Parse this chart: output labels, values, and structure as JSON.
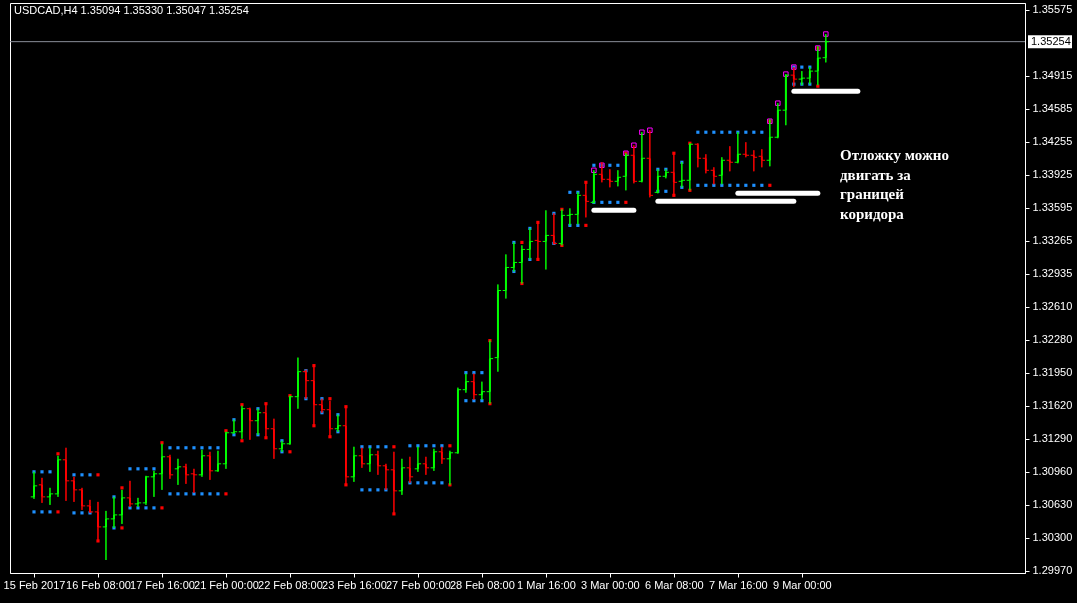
{
  "chart_data": {
    "type": "candlestick",
    "title": "USDCAD,H4 1.35094 1.35330 1.35047 1.35254",
    "categories": [
      "15 Feb 2017",
      null,
      null,
      null,
      null,
      null,
      null,
      null,
      "16 Feb 08:00",
      null,
      null,
      null,
      null,
      null,
      null,
      null,
      "17 Feb 16:00",
      null,
      null,
      null,
      null,
      null,
      null,
      null,
      "21 Feb 00:00",
      null,
      null,
      null,
      null,
      null,
      null,
      null,
      "22 Feb 08:00",
      null,
      null,
      null,
      null,
      null,
      null,
      null,
      "23 Feb 16:00",
      null,
      null,
      null,
      null,
      null,
      null,
      null,
      "27 Feb 00:00",
      null,
      null,
      null,
      null,
      null,
      null,
      null,
      "28 Feb 08:00",
      null,
      null,
      null,
      null,
      null,
      null,
      null,
      "1 Mar 16:00",
      null,
      null,
      null,
      null,
      null,
      null,
      null,
      "3 Mar 00:00",
      null,
      null,
      null,
      null,
      null,
      null,
      null,
      "6 Mar 08:00",
      null,
      null,
      null,
      null,
      null,
      null,
      null,
      "7 Mar 16:00",
      null,
      null,
      null,
      null,
      null,
      null,
      null,
      "9 Mar 00:00",
      null,
      null,
      null,
      null,
      null,
      null,
      null,
      null,
      null,
      null,
      null,
      null,
      null,
      null,
      null,
      null,
      null,
      null,
      null,
      null,
      null,
      null,
      null,
      null,
      null,
      null,
      null
    ],
    "ohlc": [
      [
        1.3071,
        1.3096,
        1.3069,
        1.3082
      ],
      [
        1.3083,
        1.309,
        1.3065,
        1.3071
      ],
      [
        1.3071,
        1.308,
        1.3063,
        1.3074
      ],
      [
        1.3074,
        1.3112,
        1.3071,
        1.3108
      ],
      [
        1.3108,
        1.312,
        1.3067,
        1.3087
      ],
      [
        1.3087,
        1.3091,
        1.3066,
        1.3078
      ],
      [
        1.3078,
        1.308,
        1.3058,
        1.3062
      ],
      [
        1.3062,
        1.3068,
        1.3055,
        1.3056
      ],
      [
        1.3056,
        1.3066,
        1.3026,
        1.3041
      ],
      [
        1.3041,
        1.3057,
        1.3008,
        1.3049
      ],
      [
        1.3049,
        1.3071,
        1.304,
        1.3053
      ],
      [
        1.3053,
        1.3078,
        1.3044,
        1.307
      ],
      [
        1.307,
        1.3087,
        1.3061,
        1.3064
      ],
      [
        1.3064,
        1.307,
        1.3061,
        1.3065
      ],
      [
        1.3065,
        1.3092,
        1.3063,
        1.3091
      ],
      [
        1.3091,
        1.3097,
        1.3071,
        1.3094
      ],
      [
        1.3094,
        1.3124,
        1.3078,
        1.3111
      ],
      [
        1.3111,
        1.3113,
        1.3089,
        1.3093
      ],
      [
        1.3099,
        1.3109,
        1.3083,
        1.3101
      ],
      [
        1.3101,
        1.3104,
        1.3084,
        1.3093
      ],
      [
        1.3094,
        1.3099,
        1.3075,
        1.3093
      ],
      [
        1.3093,
        1.3118,
        1.3091,
        1.3112
      ],
      [
        1.3112,
        1.3116,
        1.3088,
        1.3097
      ],
      [
        1.3097,
        1.3117,
        1.3096,
        1.3104
      ],
      [
        1.3104,
        1.3136,
        1.3099,
        1.3135
      ],
      [
        1.3135,
        1.3148,
        1.3134,
        1.3136
      ],
      [
        1.3136,
        1.3162,
        1.3129,
        1.3159
      ],
      [
        1.3159,
        1.316,
        1.3128,
        1.3147
      ],
      [
        1.3147,
        1.3159,
        1.3133,
        1.3155
      ],
      [
        1.3155,
        1.3164,
        1.3129,
        1.3139
      ],
      [
        1.3139,
        1.3149,
        1.3109,
        1.3119
      ],
      [
        1.3119,
        1.3127,
        1.3116,
        1.3124
      ],
      [
        1.3124,
        1.3172,
        1.3123,
        1.3171
      ],
      [
        1.3171,
        1.321,
        1.3159,
        1.3196
      ],
      [
        1.3196,
        1.3198,
        1.3169,
        1.3187
      ],
      [
        1.3187,
        1.3203,
        1.3142,
        1.3163
      ],
      [
        1.3163,
        1.3169,
        1.3155,
        1.3158
      ],
      [
        1.3158,
        1.3167,
        1.3131,
        1.3139
      ],
      [
        1.3139,
        1.3153,
        1.3136,
        1.3142
      ],
      [
        1.3142,
        1.3161,
        1.3083,
        1.3091
      ],
      [
        1.3091,
        1.3121,
        1.3086,
        1.3112
      ],
      [
        1.3112,
        1.312,
        1.31,
        1.3104
      ],
      [
        1.3104,
        1.312,
        1.3096,
        1.3113
      ],
      [
        1.3113,
        1.3117,
        1.3093,
        1.3102
      ],
      [
        1.3102,
        1.3104,
        1.3078,
        1.3098
      ],
      [
        1.3098,
        1.3116,
        1.3053,
        1.3077
      ],
      [
        1.3077,
        1.3109,
        1.3073,
        1.31
      ],
      [
        1.31,
        1.3111,
        1.3085,
        1.3091
      ],
      [
        1.3099,
        1.3121,
        1.3096,
        1.3104
      ],
      [
        1.3104,
        1.3111,
        1.3093,
        1.31
      ],
      [
        1.31,
        1.3119,
        1.3097,
        1.3116
      ],
      [
        1.3116,
        1.3121,
        1.3104,
        1.3109
      ],
      [
        1.3109,
        1.3117,
        1.3083,
        1.3115
      ],
      [
        1.3115,
        1.318,
        1.3114,
        1.3178
      ],
      [
        1.3178,
        1.3194,
        1.3175,
        1.3186
      ],
      [
        1.3186,
        1.3194,
        1.3168,
        1.3173
      ],
      [
        1.3173,
        1.3186,
        1.3168,
        1.3176
      ],
      [
        1.3176,
        1.3227,
        1.3164,
        1.3209
      ],
      [
        1.321,
        1.3283,
        1.3196,
        1.3277
      ],
      [
        1.3277,
        1.3313,
        1.3269,
        1.33
      ],
      [
        1.33,
        1.3325,
        1.3296,
        1.3305
      ],
      [
        1.3305,
        1.3322,
        1.3284,
        1.3318
      ],
      [
        1.3318,
        1.3339,
        1.3308,
        1.3326
      ],
      [
        1.3327,
        1.3345,
        1.3307,
        1.3326
      ],
      [
        1.3326,
        1.3357,
        1.3298,
        1.3332
      ],
      [
        1.3332,
        1.3354,
        1.3323,
        1.3324
      ],
      [
        1.3324,
        1.3358,
        1.3322,
        1.3352
      ],
      [
        1.3352,
        1.3359,
        1.3342,
        1.3353
      ],
      [
        1.3353,
        1.3375,
        1.3343,
        1.3372
      ],
      [
        1.3372,
        1.3386,
        1.335,
        1.3366
      ],
      [
        1.3365,
        1.3397,
        1.3364,
        1.3393
      ],
      [
        1.3393,
        1.3405,
        1.3385,
        1.3388
      ],
      [
        1.3388,
        1.3398,
        1.338,
        1.3386
      ],
      [
        1.3386,
        1.3397,
        1.3381,
        1.339
      ],
      [
        1.3391,
        1.3414,
        1.3377,
        1.3412
      ],
      [
        1.3412,
        1.3422,
        1.3384,
        1.3386
      ],
      [
        1.3386,
        1.3435,
        1.3385,
        1.3409
      ],
      [
        1.3409,
        1.3437,
        1.337,
        1.3372
      ],
      [
        1.3375,
        1.3398,
        1.3374,
        1.3391
      ],
      [
        1.3391,
        1.3398,
        1.3389,
        1.3395
      ],
      [
        1.3395,
        1.3414,
        1.3371,
        1.3385
      ],
      [
        1.3386,
        1.3405,
        1.338,
        1.3387
      ],
      [
        1.3387,
        1.3424,
        1.3377,
        1.3423
      ],
      [
        1.3423,
        1.3424,
        1.34,
        1.3409
      ],
      [
        1.3409,
        1.3413,
        1.3394,
        1.3397
      ],
      [
        1.3397,
        1.34,
        1.3383,
        1.3391
      ],
      [
        1.3392,
        1.341,
        1.3383,
        1.3407
      ],
      [
        1.3407,
        1.3421,
        1.3396,
        1.3405
      ],
      [
        1.3405,
        1.3435,
        1.3404,
        1.3413
      ],
      [
        1.3413,
        1.3425,
        1.341,
        1.3412
      ],
      [
        1.3412,
        1.3417,
        1.3396,
        1.341
      ],
      [
        1.3411,
        1.3418,
        1.34,
        1.3407
      ],
      [
        1.3407,
        1.3448,
        1.3401,
        1.343
      ],
      [
        1.343,
        1.3464,
        1.3429,
        1.3457
      ],
      [
        1.3457,
        1.3493,
        1.3442,
        1.3492
      ],
      [
        1.3492,
        1.35,
        1.348,
        1.3488
      ],
      [
        1.3488,
        1.3496,
        1.3482,
        1.3489
      ],
      [
        1.3489,
        1.35,
        1.3483,
        1.3496
      ],
      [
        1.3496,
        1.3521,
        1.3482,
        1.3509
      ],
      [
        1.35094,
        1.3533,
        1.35047,
        1.35254
      ],
      null,
      null,
      null,
      null,
      null,
      null,
      null,
      null,
      null,
      null,
      null,
      null,
      null,
      null,
      null,
      null,
      null,
      null,
      null,
      null,
      null,
      null,
      null,
      null
    ],
    "colors": [
      "#00ff00",
      "#ff0000",
      "#00ff00",
      "#00ff00",
      "#ff0000",
      "#ff0000",
      "#ff0000",
      "#ff0000",
      "#ff0000",
      "#00ff00",
      "#00ff00",
      "#00ff00",
      "#ff0000",
      "#00ff00",
      "#00ff00",
      "#00ff00",
      "#00ff00",
      "#ff0000",
      "#00ff00",
      "#ff0000",
      "#ff0000",
      "#00ff00",
      "#ff0000",
      "#00ff00",
      "#00ff00",
      "#00ff00",
      "#00ff00",
      "#ff0000",
      "#00ff00",
      "#ff0000",
      "#ff0000",
      "#00ff00",
      "#00ff00",
      "#00ff00",
      "#ff0000",
      "#ff0000",
      "#ff0000",
      "#ff0000",
      "#00ff00",
      "#ff0000",
      "#00ff00",
      "#ff0000",
      "#00ff00",
      "#ff0000",
      "#ff0000",
      "#ff0000",
      "#00ff00",
      "#ff0000",
      "#00ff00",
      "#ff0000",
      "#00ff00",
      "#ff0000",
      "#00ff00",
      "#00ff00",
      "#00ff00",
      "#ff0000",
      "#00ff00",
      "#00ff00",
      "#00ff00",
      "#00ff00",
      "#00ff00",
      "#00ff00",
      "#00ff00",
      "#ff0000",
      "#00ff00",
      "#ff0000",
      "#00ff00",
      "#00ff00",
      "#00ff00",
      "#ff0000",
      "#00ff00",
      "#ff0000",
      "#ff0000",
      "#00ff00",
      "#00ff00",
      "#ff0000",
      "#00ff00",
      "#ff0000",
      "#00ff00",
      "#00ff00",
      "#ff0000",
      "#00ff00",
      "#00ff00",
      "#ff0000",
      "#ff0000",
      "#ff0000",
      "#00ff00",
      "#ff0000",
      "#00ff00",
      "#ff0000",
      "#ff0000",
      "#ff0000",
      "#00ff00",
      "#00ff00",
      "#00ff00",
      "#ff0000",
      "#00ff00",
      "#00ff00",
      "#00ff00",
      "#00ff00",
      null,
      null,
      null,
      null,
      null,
      null,
      null,
      null,
      null,
      null,
      null,
      null,
      null,
      null,
      null,
      null,
      null,
      null,
      null,
      null,
      null,
      null,
      null,
      null
    ],
    "series": [
      {
        "type": "line",
        "color": "#ffffff",
        "values": [
          null,
          null,
          null,
          null,
          null,
          null,
          null,
          null,
          null,
          null,
          null,
          null,
          null,
          null,
          null,
          null,
          null,
          null,
          null,
          null,
          null,
          null,
          null,
          null,
          null,
          null,
          null,
          null,
          null,
          null,
          null,
          null,
          null,
          null,
          null,
          null,
          null,
          null,
          null,
          null,
          null,
          null,
          null,
          null,
          null,
          null,
          null,
          null,
          null,
          null,
          null,
          null,
          null,
          null,
          null,
          null,
          null,
          null,
          null,
          null,
          null,
          null,
          null,
          null,
          null,
          null,
          null,
          null,
          null,
          null,
          1.3357,
          1.3357,
          1.3357,
          1.3357,
          1.3357,
          1.3357,
          null,
          null,
          null,
          null,
          null,
          null,
          null,
          null,
          null,
          null,
          null,
          null,
          null,
          null,
          null,
          null,
          null,
          null,
          null,
          null,
          null,
          null,
          null,
          null,
          null,
          null,
          null,
          null,
          null,
          null,
          null,
          null,
          null,
          null,
          null,
          null,
          null,
          null,
          null,
          null,
          null,
          null,
          null,
          null,
          null,
          null,
          null,
          null
        ]
      },
      {
        "type": "line",
        "color": "#ffffff",
        "values": [
          null,
          null,
          null,
          null,
          null,
          null,
          null,
          null,
          null,
          null,
          null,
          null,
          null,
          null,
          null,
          null,
          null,
          null,
          null,
          null,
          null,
          null,
          null,
          null,
          null,
          null,
          null,
          null,
          null,
          null,
          null,
          null,
          null,
          null,
          null,
          null,
          null,
          null,
          null,
          null,
          null,
          null,
          null,
          null,
          null,
          null,
          null,
          null,
          null,
          null,
          null,
          null,
          null,
          null,
          null,
          null,
          null,
          null,
          null,
          null,
          null,
          null,
          null,
          null,
          null,
          null,
          null,
          null,
          null,
          null,
          null,
          null,
          null,
          null,
          null,
          null,
          null,
          null,
          1.3366,
          1.3366,
          1.3366,
          1.3366,
          1.3366,
          1.3366,
          1.3366,
          1.3366,
          1.3366,
          1.3366,
          1.3366,
          1.3366,
          1.3366,
          1.3366,
          1.3366,
          1.3366,
          1.3366,
          1.3366,
          null,
          null,
          null,
          null,
          null,
          null,
          null,
          null,
          null,
          null,
          null,
          null,
          null,
          null,
          null,
          null,
          null,
          null,
          null,
          null,
          null,
          null,
          null,
          null,
          null,
          null,
          null,
          null
        ]
      },
      {
        "type": "line",
        "color": "#ffffff",
        "values": [
          null,
          null,
          null,
          null,
          null,
          null,
          null,
          null,
          null,
          null,
          null,
          null,
          null,
          null,
          null,
          null,
          null,
          null,
          null,
          null,
          null,
          null,
          null,
          null,
          null,
          null,
          null,
          null,
          null,
          null,
          null,
          null,
          null,
          null,
          null,
          null,
          null,
          null,
          null,
          null,
          null,
          null,
          null,
          null,
          null,
          null,
          null,
          null,
          null,
          null,
          null,
          null,
          null,
          null,
          null,
          null,
          null,
          null,
          null,
          null,
          null,
          null,
          null,
          null,
          null,
          null,
          null,
          null,
          null,
          null,
          null,
          null,
          null,
          null,
          null,
          null,
          null,
          null,
          null,
          null,
          null,
          null,
          null,
          null,
          null,
          null,
          null,
          null,
          1.3374,
          1.3374,
          1.3374,
          1.3374,
          1.3374,
          1.3374,
          1.3374,
          1.3374,
          1.3374,
          1.3374,
          1.3374,
          null,
          null,
          null,
          null,
          null,
          null,
          null,
          null,
          null,
          null,
          null,
          null,
          null,
          null,
          null,
          null,
          null,
          null,
          null,
          null,
          null,
          null,
          null,
          null,
          null
        ]
      },
      {
        "type": "line",
        "color": "#ffffff",
        "values": [
          null,
          null,
          null,
          null,
          null,
          null,
          null,
          null,
          null,
          null,
          null,
          null,
          null,
          null,
          null,
          null,
          null,
          null,
          null,
          null,
          null,
          null,
          null,
          null,
          null,
          null,
          null,
          null,
          null,
          null,
          null,
          null,
          null,
          null,
          null,
          null,
          null,
          null,
          null,
          null,
          null,
          null,
          null,
          null,
          null,
          null,
          null,
          null,
          null,
          null,
          null,
          null,
          null,
          null,
          null,
          null,
          null,
          null,
          null,
          null,
          null,
          null,
          null,
          null,
          null,
          null,
          null,
          null,
          null,
          null,
          null,
          null,
          null,
          null,
          null,
          null,
          null,
          null,
          null,
          null,
          null,
          null,
          null,
          null,
          null,
          null,
          null,
          null,
          null,
          null,
          null,
          null,
          null,
          null,
          null,
          1.3476,
          1.3476,
          1.3476,
          1.3476,
          1.3476,
          1.3476,
          1.3476,
          1.3476,
          1.3476,
          null,
          null,
          null,
          null,
          null,
          null,
          null,
          null,
          null,
          null,
          null,
          null,
          null,
          null,
          null,
          null,
          null,
          null,
          null,
          null
        ]
      },
      {
        "type": "scatter",
        "marker": "square",
        "values": [
          1.3096,
          1.3096,
          1.3096,
          1.3114,
          null,
          1.3093,
          1.3093,
          1.3093,
          1.3093,
          null,
          1.3071,
          1.308,
          1.3099,
          1.3099,
          1.3099,
          1.3099,
          1.3125,
          1.312,
          1.312,
          1.312,
          1.312,
          1.312,
          1.312,
          1.312,
          1.3137,
          1.3148,
          1.3163,
          null,
          1.3159,
          1.3164,
          null,
          1.3127,
          1.3172,
          null,
          1.3197,
          1.3202,
          1.3169,
          1.3169,
          1.3153,
          1.3161,
          null,
          1.3121,
          1.3121,
          1.3121,
          1.3121,
          1.3121,
          null,
          1.3122,
          1.3122,
          1.3122,
          1.3122,
          1.3122,
          1.3122,
          null,
          1.3195,
          1.3195,
          1.3195,
          1.3227,
          null,
          null,
          1.3325,
          1.3325,
          1.3339,
          1.3345,
          null,
          1.3354,
          1.3358,
          1.3375,
          1.3375,
          1.3385,
          1.3402,
          1.3402,
          1.3402,
          1.3402,
          1.3414,
          null,
          null,
          null,
          1.3398,
          1.3398,
          1.3414,
          1.3405,
          1.3424,
          1.3435,
          1.3435,
          1.3435,
          1.3435,
          1.3435,
          1.3435,
          1.3435,
          1.3435,
          1.3435,
          1.3446,
          null,
          null,
          1.35,
          1.35,
          1.35,
          1.3519,
          null,
          null,
          null,
          null,
          null,
          null,
          null,
          null,
          null,
          null,
          null,
          null,
          null,
          null,
          null,
          null,
          null,
          null,
          null,
          null,
          null,
          null,
          null,
          null,
          null
        ],
        "colors": [
          "#1e90ff",
          "#1e90ff",
          "#1e90ff",
          "#ff0000",
          null,
          "#1e90ff",
          "#1e90ff",
          "#1e90ff",
          "#ff0000",
          null,
          "#1e90ff",
          "#ff0000",
          "#1e90ff",
          "#1e90ff",
          "#1e90ff",
          "#1e90ff",
          "#ff0000",
          "#1e90ff",
          "#1e90ff",
          "#1e90ff",
          "#1e90ff",
          "#1e90ff",
          "#1e90ff",
          "#1e90ff",
          "#ff0000",
          "#1e90ff",
          "#ff0000",
          null,
          "#1e90ff",
          "#ff0000",
          null,
          "#1e90ff",
          "#ff0000",
          null,
          "#1e90ff",
          "#ff0000",
          "#1e90ff",
          "#ff0000",
          "#1e90ff",
          "#ff0000",
          null,
          "#1e90ff",
          "#1e90ff",
          "#1e90ff",
          "#1e90ff",
          "#ff0000",
          null,
          "#1e90ff",
          "#1e90ff",
          "#1e90ff",
          "#1e90ff",
          "#1e90ff",
          "#ff0000",
          null,
          "#1e90ff",
          "#1e90ff",
          "#1e90ff",
          "#ff0000",
          null,
          null,
          "#1e90ff",
          "#ff0000",
          "#1e90ff",
          "#ff0000",
          null,
          "#1e90ff",
          "#ff0000",
          "#1e90ff",
          "#1e90ff",
          "#ff0000",
          "#1e90ff",
          "#1e90ff",
          "#1e90ff",
          "#1e90ff",
          "#ff0000",
          null,
          null,
          null,
          "#1e90ff",
          "#1e90ff",
          "#ff0000",
          "#1e90ff",
          "#ff0000",
          "#1e90ff",
          "#1e90ff",
          "#1e90ff",
          "#1e90ff",
          "#1e90ff",
          "#1e90ff",
          "#1e90ff",
          "#1e90ff",
          "#1e90ff",
          "#ff0000",
          null,
          null,
          "#1e90ff",
          "#1e90ff",
          "#1e90ff",
          "#ff0000",
          null,
          null,
          null,
          null,
          null,
          null,
          null,
          null,
          null,
          null,
          null,
          null,
          null,
          null,
          null,
          null,
          null,
          null,
          null,
          null,
          null,
          null,
          null,
          null,
          null
        ]
      },
      {
        "type": "scatter",
        "marker": "square",
        "values": [
          1.3056,
          1.3056,
          1.3056,
          1.3056,
          null,
          1.3055,
          1.3055,
          1.3055,
          1.3027,
          null,
          1.304,
          1.304,
          1.306,
          1.306,
          1.306,
          1.306,
          1.306,
          1.3074,
          1.3074,
          1.3074,
          1.3074,
          1.3074,
          1.3074,
          1.3074,
          1.3074,
          1.3133,
          1.3127,
          null,
          1.3133,
          1.313,
          null,
          1.3116,
          1.3116,
          null,
          1.3169,
          1.3142,
          1.3155,
          1.3131,
          1.3136,
          1.3083,
          null,
          1.3078,
          1.3078,
          1.3078,
          1.3078,
          1.3054,
          null,
          1.3085,
          1.3085,
          1.3085,
          1.3085,
          1.3085,
          1.3083,
          null,
          1.3167,
          1.3167,
          1.3167,
          1.3164,
          null,
          null,
          1.3296,
          1.3284,
          1.3308,
          1.3308,
          null,
          1.3324,
          1.3322,
          1.3342,
          1.3342,
          1.3342,
          1.3365,
          1.3365,
          1.3365,
          1.3365,
          1.3365,
          null,
          null,
          null,
          1.3376,
          1.3376,
          1.3372,
          1.338,
          1.3377,
          1.3382,
          1.3382,
          1.3382,
          1.3382,
          1.3382,
          1.3382,
          1.3382,
          1.3382,
          1.3382,
          1.3382,
          null,
          null,
          1.3483,
          1.3483,
          1.3483,
          1.3481,
          null,
          null,
          null,
          null,
          null,
          null,
          null,
          null,
          null,
          null,
          null,
          null,
          null,
          null,
          null,
          null,
          null,
          null,
          null,
          null,
          null,
          null,
          null,
          null,
          null
        ],
        "colors": [
          "#1e90ff",
          "#1e90ff",
          "#1e90ff",
          "#ff0000",
          null,
          "#1e90ff",
          "#1e90ff",
          "#1e90ff",
          "#ff0000",
          null,
          "#1e90ff",
          "#ff0000",
          "#1e90ff",
          "#1e90ff",
          "#1e90ff",
          "#1e90ff",
          "#ff0000",
          "#1e90ff",
          "#1e90ff",
          "#1e90ff",
          "#1e90ff",
          "#1e90ff",
          "#1e90ff",
          "#1e90ff",
          "#ff0000",
          "#1e90ff",
          "#ff0000",
          null,
          "#1e90ff",
          "#ff0000",
          null,
          "#1e90ff",
          "#ff0000",
          null,
          "#1e90ff",
          "#ff0000",
          "#1e90ff",
          "#ff0000",
          "#1e90ff",
          "#ff0000",
          null,
          "#1e90ff",
          "#1e90ff",
          "#1e90ff",
          "#1e90ff",
          "#ff0000",
          null,
          "#1e90ff",
          "#1e90ff",
          "#1e90ff",
          "#1e90ff",
          "#1e90ff",
          "#ff0000",
          null,
          "#1e90ff",
          "#1e90ff",
          "#1e90ff",
          "#ff0000",
          null,
          null,
          "#1e90ff",
          "#ff0000",
          "#1e90ff",
          "#ff0000",
          null,
          "#1e90ff",
          "#ff0000",
          "#1e90ff",
          "#1e90ff",
          "#ff0000",
          "#1e90ff",
          "#1e90ff",
          "#1e90ff",
          "#1e90ff",
          "#ff0000",
          null,
          null,
          null,
          "#1e90ff",
          "#1e90ff",
          "#ff0000",
          "#1e90ff",
          "#ff0000",
          "#1e90ff",
          "#1e90ff",
          "#1e90ff",
          "#1e90ff",
          "#1e90ff",
          "#1e90ff",
          "#1e90ff",
          "#1e90ff",
          "#1e90ff",
          "#ff0000",
          null,
          null,
          "#1e90ff",
          "#1e90ff",
          "#1e90ff",
          "#ff0000",
          null,
          null,
          null,
          null,
          null,
          null,
          null,
          null,
          null,
          null,
          null,
          null,
          null,
          null,
          null,
          null,
          null,
          null,
          null,
          null,
          null,
          null,
          null,
          null,
          null
        ]
      },
      {
        "type": "scatter",
        "marker": "square",
        "color": "#ff00ff",
        "values": [
          null,
          null,
          null,
          null,
          null,
          null,
          null,
          null,
          null,
          null,
          null,
          null,
          null,
          null,
          null,
          null,
          null,
          null,
          null,
          null,
          null,
          null,
          null,
          null,
          null,
          null,
          null,
          null,
          null,
          null,
          null,
          null,
          null,
          null,
          null,
          null,
          null,
          null,
          null,
          null,
          null,
          null,
          null,
          null,
          null,
          null,
          null,
          null,
          null,
          null,
          null,
          null,
          null,
          null,
          null,
          null,
          null,
          null,
          null,
          null,
          null,
          null,
          null,
          null,
          null,
          null,
          null,
          null,
          null,
          null,
          1.3397,
          1.3402,
          null,
          null,
          1.3414,
          1.3422,
          1.3435,
          1.3437,
          null,
          null,
          null,
          null,
          null,
          null,
          null,
          null,
          null,
          null,
          null,
          null,
          null,
          null,
          1.3446,
          1.3464,
          1.3493,
          1.35,
          null,
          null,
          1.3519,
          1.3533,
          null,
          null,
          null,
          null,
          null,
          null,
          null,
          null,
          null,
          null,
          null,
          null,
          null,
          null,
          null,
          null,
          null,
          null,
          null,
          null,
          null,
          null,
          null,
          null
        ]
      }
    ],
    "ylim": [
      1.2995,
      1.3564
    ],
    "yticks": [
      1.35575,
      1.34915,
      1.34585,
      1.34255,
      1.33925,
      1.33595,
      1.33265,
      1.32935,
      {
        "value": 1.3261,
        "label": "1.32610"
      },
      {
        "value": 1.3228,
        "label": "1.32280"
      },
      {
        "value": 1.3195,
        "label": "1.31950"
      },
      {
        "value": 1.3162,
        "label": "1.31620"
      },
      {
        "value": 1.3129,
        "label": "1.31290"
      },
      {
        "value": 1.3096,
        "label": "1.30960"
      },
      {
        "value": 1.3063,
        "label": "1.30630"
      },
      {
        "value": 1.303,
        "label": "1.30300"
      },
      {
        "value": 1.2997,
        "label": "1.29970"
      }
    ],
    "ref_lines": [
      {
        "axis": "y",
        "value": 1.35254,
        "label": "1.35254",
        "color": "#8a8f99"
      }
    ],
    "annotations": [
      "Отложку можно двигать за границей коридора"
    ]
  }
}
